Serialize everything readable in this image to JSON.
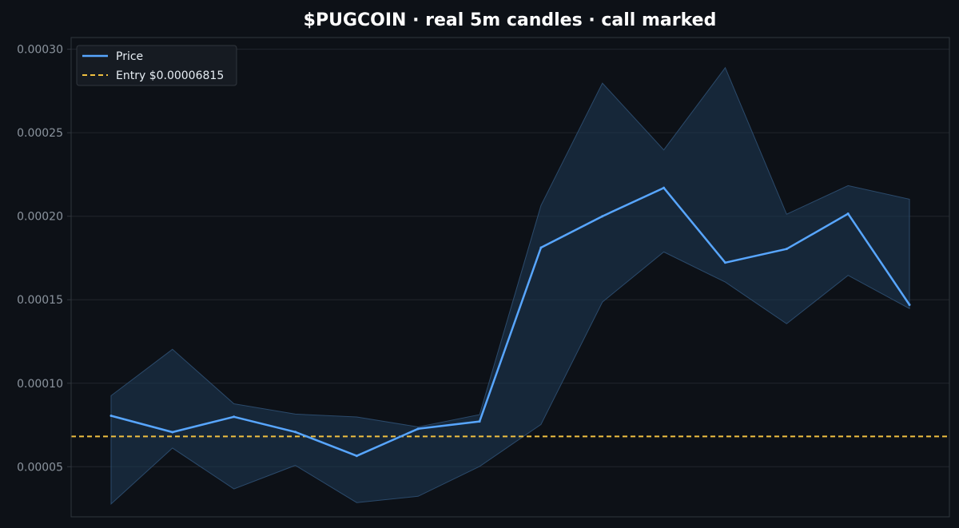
{
  "chart_data": {
    "type": "line",
    "title": "$PUGCOIN  ·  real 5m candles · call marked",
    "xlabel": "",
    "ylabel": "",
    "ylim": [
      2e-05,
      0.000307
    ],
    "yticks": [
      "0.00005",
      "0.00010",
      "0.00015",
      "0.00020",
      "0.00025",
      "0.00030"
    ],
    "ytick_values": [
      5e-05,
      0.0001,
      0.00015,
      0.0002,
      0.00025,
      0.0003
    ],
    "grid": "horizontal",
    "legend_position": "top-left",
    "x": [
      0,
      1,
      2,
      3,
      4,
      5,
      6,
      7,
      8,
      9,
      10,
      11,
      12,
      13
    ],
    "series": [
      {
        "name": "Price",
        "values": [
          8.05e-05,
          7.07e-05,
          7.99e-05,
          7.08e-05,
          5.65e-05,
          7.27e-05,
          7.71e-05,
          0.0001812,
          0.0002,
          0.000217,
          0.0001722,
          0.0001804,
          0.0002015,
          0.000147
        ]
      }
    ],
    "range_band": {
      "high": [
        9.25e-05,
        0.0001203,
        8.77e-05,
        8.15e-05,
        7.98e-05,
        7.38e-05,
        8.12e-05,
        0.0002064,
        0.0002797,
        0.0002397,
        0.0002889,
        0.0002012,
        0.0002183,
        0.0002102
      ],
      "low": [
        2.77e-05,
        6.12e-05,
        3.67e-05,
        5.08e-05,
        2.85e-05,
        3.23e-05,
        5.02e-05,
        7.53e-05,
        0.0001486,
        0.0001786,
        0.0001606,
        0.0001356,
        0.0001646,
        0.0001447
      ]
    },
    "entry": {
      "name": "Entry $0.00006815",
      "value": 6.815e-05
    },
    "colors": {
      "background": "#0d1117",
      "price": "#58a6ff",
      "band": "#1f3a56",
      "entry": "#f0c040",
      "grid": "#21262d",
      "axis": "#30363d"
    }
  }
}
